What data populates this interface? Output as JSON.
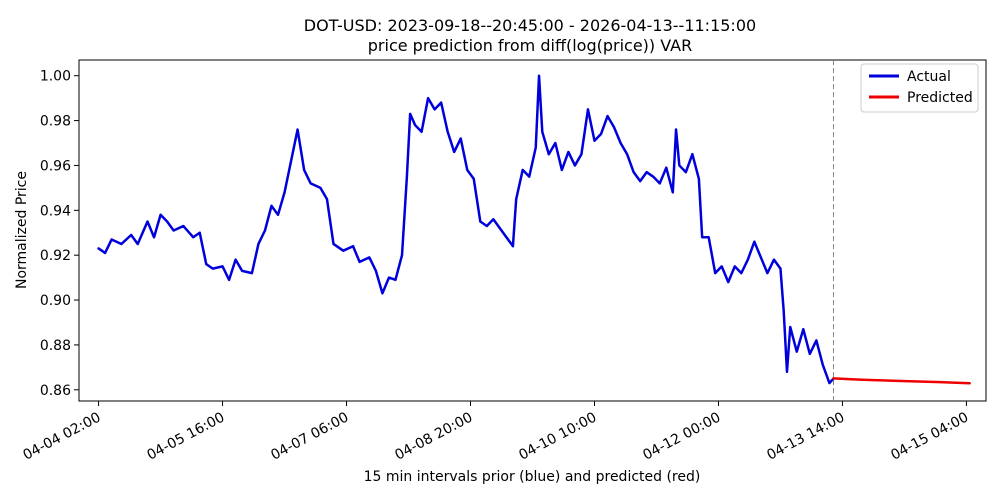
{
  "chart_data": {
    "type": "line",
    "title": "DOT-USD: 2023-09-18--20:45:00 - 2026-04-13--11:15:00",
    "subtitle": "price prediction from diff(log(price)) VAR",
    "xlabel": "15 min intervals prior (blue) and predicted (red)",
    "ylabel": "Normalized Price",
    "ylim": [
      0.855,
      1.007
    ],
    "xlim": [
      "2026-04-03 20:00",
      "2026-04-15 10:00"
    ],
    "grid": false,
    "legend_position": "top-right",
    "x_tick_labels": [
      "04-04 02:00",
      "04-05 16:00",
      "04-07 06:00",
      "04-08 20:00",
      "04-10 10:00",
      "04-12 00:00",
      "04-13 14:00",
      "04-15 04:00"
    ],
    "x_tick_values": [
      "2026-04-04 02:00",
      "2026-04-05 16:00",
      "2026-04-07 06:00",
      "2026-04-08 20:00",
      "2026-04-10 10:00",
      "2026-04-12 00:00",
      "2026-04-13 14:00",
      "2026-04-15 04:00"
    ],
    "y_tick_labels": [
      "0.86",
      "0.88",
      "0.90",
      "0.92",
      "0.94",
      "0.96",
      "0.98",
      "1.00"
    ],
    "y_tick_values": [
      0.86,
      0.88,
      0.9,
      0.92,
      0.94,
      0.96,
      0.98,
      1.0
    ],
    "vline": {
      "x": "2026-04-13 11:15",
      "style": "dashed",
      "color": "#808080"
    },
    "series": [
      {
        "name": "Actual",
        "color": "#0000dd",
        "points": [
          [
            "2026-04-04 02:00",
            0.923
          ],
          [
            "2026-04-04 04:00",
            0.921
          ],
          [
            "2026-04-04 06:00",
            0.927
          ],
          [
            "2026-04-04 09:00",
            0.925
          ],
          [
            "2026-04-04 12:00",
            0.929
          ],
          [
            "2026-04-04 14:00",
            0.925
          ],
          [
            "2026-04-04 17:00",
            0.935
          ],
          [
            "2026-04-04 19:00",
            0.928
          ],
          [
            "2026-04-04 21:00",
            0.938
          ],
          [
            "2026-04-04 23:00",
            0.935
          ],
          [
            "2026-04-05 01:00",
            0.931
          ],
          [
            "2026-04-05 04:00",
            0.933
          ],
          [
            "2026-04-05 07:00",
            0.928
          ],
          [
            "2026-04-05 09:00",
            0.93
          ],
          [
            "2026-04-05 11:00",
            0.916
          ],
          [
            "2026-04-05 13:00",
            0.914
          ],
          [
            "2026-04-05 16:00",
            0.915
          ],
          [
            "2026-04-05 18:00",
            0.909
          ],
          [
            "2026-04-05 20:00",
            0.918
          ],
          [
            "2026-04-05 22:00",
            0.913
          ],
          [
            "2026-04-06 01:00",
            0.912
          ],
          [
            "2026-04-06 03:00",
            0.925
          ],
          [
            "2026-04-06 05:00",
            0.931
          ],
          [
            "2026-04-06 07:00",
            0.942
          ],
          [
            "2026-04-06 09:00",
            0.938
          ],
          [
            "2026-04-06 11:00",
            0.948
          ],
          [
            "2026-04-06 13:00",
            0.962
          ],
          [
            "2026-04-06 15:00",
            0.976
          ],
          [
            "2026-04-06 17:00",
            0.958
          ],
          [
            "2026-04-06 19:00",
            0.952
          ],
          [
            "2026-04-06 22:00",
            0.95
          ],
          [
            "2026-04-07 00:00",
            0.945
          ],
          [
            "2026-04-07 02:00",
            0.925
          ],
          [
            "2026-04-07 05:00",
            0.922
          ],
          [
            "2026-04-07 08:00",
            0.924
          ],
          [
            "2026-04-07 10:00",
            0.917
          ],
          [
            "2026-04-07 13:00",
            0.919
          ],
          [
            "2026-04-07 15:00",
            0.913
          ],
          [
            "2026-04-07 17:00",
            0.903
          ],
          [
            "2026-04-07 19:00",
            0.91
          ],
          [
            "2026-04-07 21:00",
            0.909
          ],
          [
            "2026-04-07 23:00",
            0.92
          ],
          [
            "2026-04-08 00:30",
            0.955
          ],
          [
            "2026-04-08 01:30",
            0.983
          ],
          [
            "2026-04-08 03:00",
            0.978
          ],
          [
            "2026-04-08 05:00",
            0.975
          ],
          [
            "2026-04-08 07:00",
            0.99
          ],
          [
            "2026-04-08 09:00",
            0.985
          ],
          [
            "2026-04-08 11:00",
            0.988
          ],
          [
            "2026-04-08 13:00",
            0.975
          ],
          [
            "2026-04-08 15:00",
            0.966
          ],
          [
            "2026-04-08 17:00",
            0.972
          ],
          [
            "2026-04-08 19:00",
            0.958
          ],
          [
            "2026-04-08 21:00",
            0.954
          ],
          [
            "2026-04-08 23:00",
            0.935
          ],
          [
            "2026-04-09 01:00",
            0.933
          ],
          [
            "2026-04-09 03:00",
            0.936
          ],
          [
            "2026-04-09 05:00",
            0.932
          ],
          [
            "2026-04-09 07:00",
            0.928
          ],
          [
            "2026-04-09 09:00",
            0.924
          ],
          [
            "2026-04-09 10:00",
            0.945
          ],
          [
            "2026-04-09 12:00",
            0.958
          ],
          [
            "2026-04-09 14:00",
            0.955
          ],
          [
            "2026-04-09 16:00",
            0.968
          ],
          [
            "2026-04-09 17:00",
            1.0
          ],
          [
            "2026-04-09 18:00",
            0.975
          ],
          [
            "2026-04-09 20:00",
            0.965
          ],
          [
            "2026-04-09 22:00",
            0.97
          ],
          [
            "2026-04-10 00:00",
            0.958
          ],
          [
            "2026-04-10 02:00",
            0.966
          ],
          [
            "2026-04-10 04:00",
            0.96
          ],
          [
            "2026-04-10 06:00",
            0.965
          ],
          [
            "2026-04-10 08:00",
            0.985
          ],
          [
            "2026-04-10 10:00",
            0.971
          ],
          [
            "2026-04-10 12:00",
            0.974
          ],
          [
            "2026-04-10 14:00",
            0.982
          ],
          [
            "2026-04-10 16:00",
            0.977
          ],
          [
            "2026-04-10 18:00",
            0.97
          ],
          [
            "2026-04-10 20:00",
            0.965
          ],
          [
            "2026-04-10 22:00",
            0.957
          ],
          [
            "2026-04-11 00:00",
            0.953
          ],
          [
            "2026-04-11 02:00",
            0.957
          ],
          [
            "2026-04-11 04:00",
            0.955
          ],
          [
            "2026-04-11 06:00",
            0.952
          ],
          [
            "2026-04-11 08:00",
            0.959
          ],
          [
            "2026-04-11 10:00",
            0.948
          ],
          [
            "2026-04-11 11:00",
            0.976
          ],
          [
            "2026-04-11 12:00",
            0.96
          ],
          [
            "2026-04-11 14:00",
            0.957
          ],
          [
            "2026-04-11 16:00",
            0.965
          ],
          [
            "2026-04-11 18:00",
            0.954
          ],
          [
            "2026-04-11 19:00",
            0.928
          ],
          [
            "2026-04-11 21:00",
            0.928
          ],
          [
            "2026-04-11 23:00",
            0.912
          ],
          [
            "2026-04-12 01:00",
            0.915
          ],
          [
            "2026-04-12 03:00",
            0.908
          ],
          [
            "2026-04-12 05:00",
            0.915
          ],
          [
            "2026-04-12 07:00",
            0.912
          ],
          [
            "2026-04-12 09:00",
            0.918
          ],
          [
            "2026-04-12 11:00",
            0.926
          ],
          [
            "2026-04-12 13:00",
            0.919
          ],
          [
            "2026-04-12 15:00",
            0.912
          ],
          [
            "2026-04-12 17:00",
            0.918
          ],
          [
            "2026-04-12 19:00",
            0.914
          ],
          [
            "2026-04-12 20:00",
            0.895
          ],
          [
            "2026-04-12 21:00",
            0.868
          ],
          [
            "2026-04-12 22:00",
            0.888
          ],
          [
            "2026-04-13 00:00",
            0.877
          ],
          [
            "2026-04-13 02:00",
            0.887
          ],
          [
            "2026-04-13 04:00",
            0.876
          ],
          [
            "2026-04-13 06:00",
            0.882
          ],
          [
            "2026-04-13 08:00",
            0.871
          ],
          [
            "2026-04-13 10:00",
            0.863
          ],
          [
            "2026-04-13 11:15",
            0.865
          ]
        ]
      },
      {
        "name": "Predicted",
        "color": "#ee0000",
        "points": [
          [
            "2026-04-13 11:15",
            0.8651
          ],
          [
            "2026-04-13 20:00",
            0.8645
          ],
          [
            "2026-04-14 08:00",
            0.8639
          ],
          [
            "2026-04-14 20:00",
            0.8634
          ],
          [
            "2026-04-15 05:00",
            0.8629
          ]
        ]
      }
    ]
  }
}
